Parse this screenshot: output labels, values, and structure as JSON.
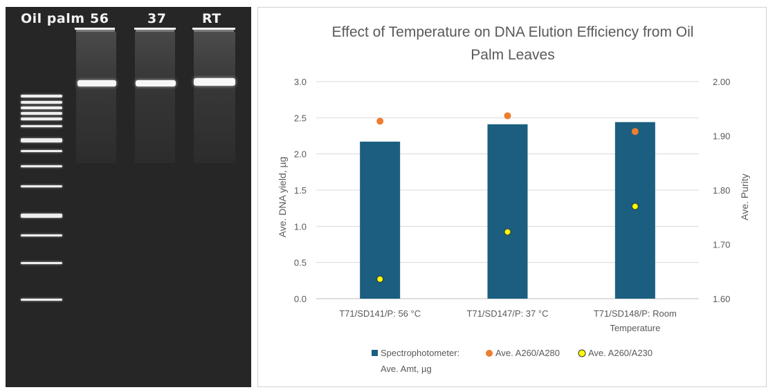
{
  "gel": {
    "lane_labels": [
      "Oil palm",
      "56",
      "37",
      "RT"
    ]
  },
  "colors": {
    "bar": "#1b5e80",
    "a280": "#ed7d31",
    "a230": "#ffff00",
    "gel_bg": "#262626"
  },
  "chart_data": {
    "type": "bar",
    "title_lines": [
      "Effect of Temperature on DNA Elution Efficiency from Oil",
      "Palm Leaves"
    ],
    "categories": [
      [
        "T71/SD141/P: 56 °C"
      ],
      [
        "T71/SD147/P: 37 °C"
      ],
      [
        "T71/SD148/P: Room",
        "Temperature"
      ]
    ],
    "ylabel_left": "Ave. DNA yield, µg",
    "ylabel_right": "Ave. Purity",
    "ylim_left": [
      0,
      3.0
    ],
    "ylim_right": [
      1.6,
      2.0
    ],
    "yticks_left": [
      "0.0",
      "0.5",
      "1.0",
      "1.5",
      "2.0",
      "2.5",
      "3.0"
    ],
    "yticks_right": [
      "1.60",
      "1.70",
      "1.80",
      "1.90",
      "2.00"
    ],
    "series": [
      {
        "name_lines": [
          "Spectrophotometer:",
          "Ave. Amt, µg"
        ],
        "kind": "bar",
        "axis": "left",
        "values": [
          2.17,
          2.41,
          2.44
        ]
      },
      {
        "name_lines": [
          "Ave. A260/A280"
        ],
        "kind": "dot",
        "axis": "right",
        "values": [
          1.927,
          1.937,
          1.908
        ]
      },
      {
        "name_lines": [
          "Ave. A260/A230"
        ],
        "kind": "dot",
        "axis": "right",
        "values": [
          1.636,
          1.723,
          1.77
        ]
      }
    ]
  }
}
